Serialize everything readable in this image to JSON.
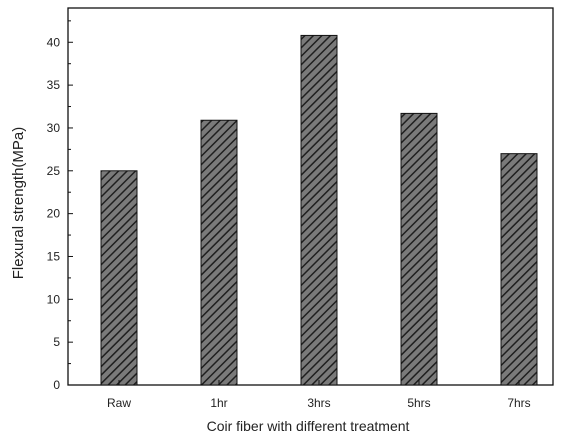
{
  "chart_data": {
    "type": "bar",
    "categories": [
      "Raw",
      "1hr",
      "3hrs",
      "5hrs",
      "7hrs"
    ],
    "values": [
      25.0,
      30.9,
      40.8,
      31.7,
      27.0
    ],
    "title": "",
    "xlabel": "Coir fiber with different treatment",
    "ylabel": "Flexural strength(MPa)",
    "ylim": [
      0,
      44
    ],
    "yticks": [
      0,
      5,
      10,
      15,
      20,
      25,
      30,
      35,
      40
    ],
    "grid": false,
    "legend": "none",
    "bar_pattern": "diagonal-hatch",
    "colors": {
      "bar_fill": "#7a7a7a",
      "bar_hatch": "#1f1f1f",
      "axis": "#111111",
      "text": "#222222"
    }
  }
}
